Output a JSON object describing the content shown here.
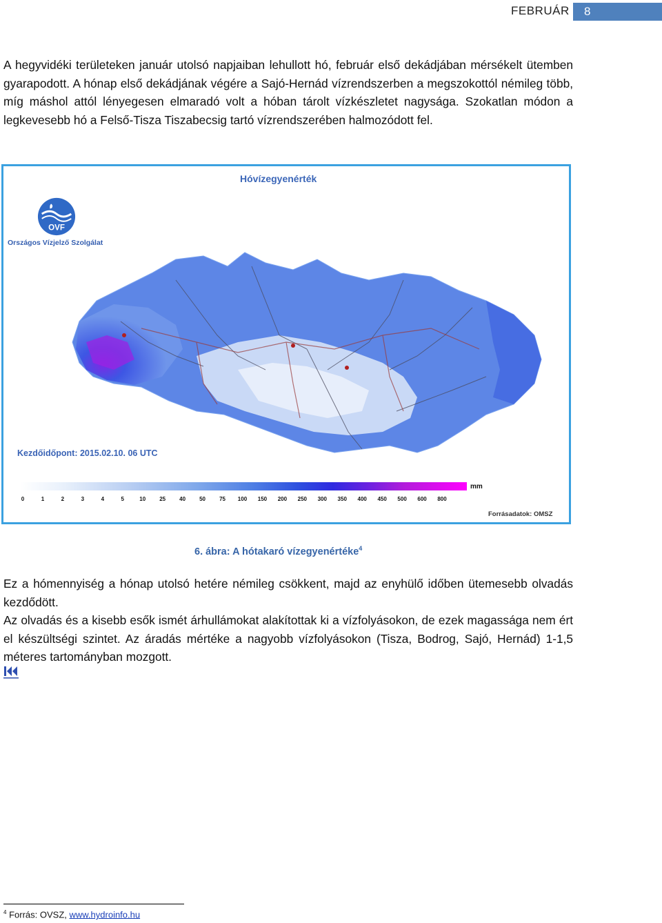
{
  "header": {
    "section": "FEBRUÁR",
    "page_number": "8"
  },
  "paragraphs": {
    "p1": "A hegyvidéki területeken január utolsó napjaiban lehullott hó, február első dekádjában mérsékelt ütemben gyarapodott. A hónap első dekádjának végére a Sajó-Hernád vízrendszerben a megszokottól némileg több, míg máshol attól lényegesen elmaradó volt a hóban tárolt vízkészletet nagysága. Szokatlan módon a legkevesebb hó a Felső-Tisza Tiszabecsig tartó vízrendszerében halmozódott fel.",
    "p2": "Ez a hómennyiség a hónap utolsó hetére némileg csökkent, majd az enyhülő időben ütemesebb olvadás kezdődött.",
    "p3": "Az olvadás és a kisebb esők ismét árhullámokat alakítottak ki a vízfolyásokon, de ezek magassága nem ért el készültségi szintet. Az áradás mértéke a nagyobb vízfolyásokon (Tisza, Bodrog, Sajó, Hernád) 1-1,5 méteres tartományban mozgott."
  },
  "figure": {
    "title": "Hóvízegyenérték",
    "logo_text": "OVF",
    "org_name": "Országos Vízjelző Szolgálat",
    "start_time": "Kezdőidőpont: 2015.02.10. 06 UTC",
    "legend_unit": "mm",
    "legend_ticks": [
      "0",
      "1",
      "2",
      "3",
      "4",
      "5",
      "10",
      "25",
      "40",
      "50",
      "75",
      "100",
      "150",
      "200",
      "250",
      "300",
      "350",
      "400",
      "450",
      "500",
      "600",
      "800"
    ],
    "legend_colors": {
      "low": "#ffffff",
      "mid": "#4f7fe4",
      "high": "#ff00ff"
    },
    "source": "Forrásadatok: OMSZ",
    "caption_label": "6. ábra: A hótakaró vízegyenértéke",
    "caption_ref": "4"
  },
  "nav": {
    "first_page_icon": "first-page-icon"
  },
  "footnote": {
    "number": "4",
    "text": "Forrás: OVSZ, ",
    "link": "www.hydroinfo.hu"
  }
}
